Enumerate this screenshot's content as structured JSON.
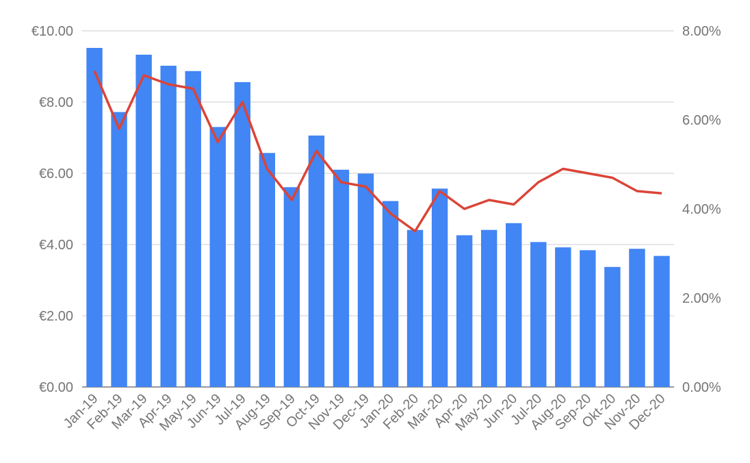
{
  "chart_data": {
    "type": "bar",
    "title": "",
    "xlabel": "",
    "ylabel": "",
    "categories": [
      "Jan-19",
      "Feb-19",
      "Mar-19",
      "Apr-19",
      "May-19",
      "Jun-19",
      "Jul-19",
      "Aug-19",
      "Sep-19",
      "Oct-19",
      "Nov-19",
      "Dec-19",
      "Jan-20",
      "Feb-20",
      "Mar-20",
      "Apr-20",
      "May-20",
      "Jun-20",
      "Jul-20",
      "Aug-20",
      "Sep-20",
      "Okt-20",
      "Nov-20",
      "Dec-20"
    ],
    "series": [
      {
        "type": "bar",
        "axis": "left",
        "color": "#4285f4",
        "values": [
          9.52,
          7.72,
          9.33,
          9.02,
          8.87,
          7.3,
          8.56,
          6.57,
          5.61,
          7.06,
          6.1,
          5.99,
          5.22,
          4.41,
          5.57,
          4.26,
          4.41,
          4.6,
          4.07,
          3.92,
          3.84,
          3.37,
          3.88,
          3.68
        ]
      },
      {
        "type": "line",
        "axis": "right",
        "color": "#db4437",
        "values": [
          7.1,
          5.8,
          7.0,
          6.8,
          6.7,
          5.5,
          6.4,
          4.9,
          4.2,
          5.3,
          4.6,
          4.5,
          3.9,
          3.5,
          4.4,
          4.0,
          4.2,
          4.1,
          4.6,
          4.9,
          4.8,
          4.7,
          4.4,
          4.35
        ]
      }
    ],
    "y_left": {
      "min": 0,
      "max": 10,
      "ticks": [
        "€0.00",
        "€2.00",
        "€4.00",
        "€6.00",
        "€8.00",
        "€10.00"
      ]
    },
    "y_right": {
      "min": 0,
      "max": 8,
      "ticks": [
        "0.00%",
        "2.00%",
        "4.00%",
        "6.00%",
        "8.00%"
      ]
    },
    "grid": true,
    "legend": "none"
  }
}
